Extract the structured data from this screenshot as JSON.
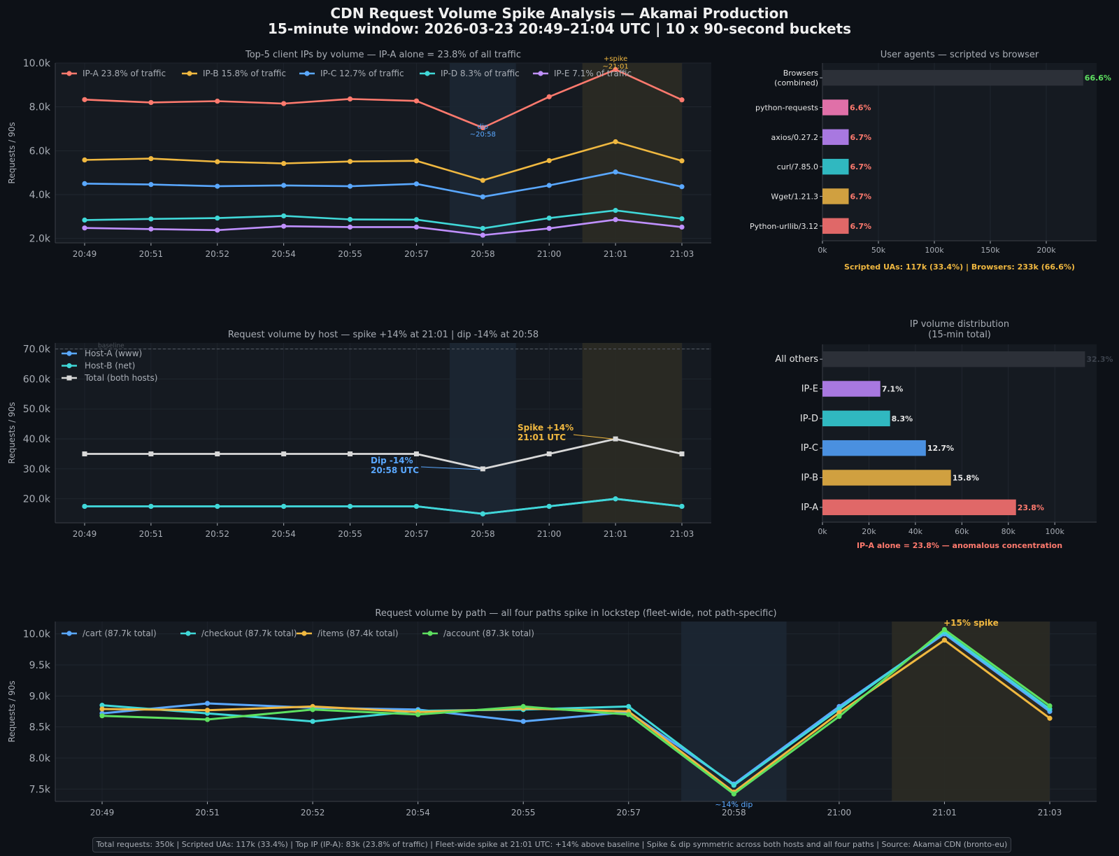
{
  "header": {
    "title_line1": "CDN Request Volume Spike Analysis  —  Akamai Production",
    "title_line2": "15-minute window:  2026-03-23  20:49–21:04 UTC  |  10 x 90-second buckets"
  },
  "colors": {
    "background": "#0d1117",
    "panel": "#151a21",
    "grid": "#242a33",
    "axis_text": "#a8adb5",
    "dip_band": "#1b2633",
    "spike_band": "#2a2a24",
    "orange": "#f0b840",
    "blue": "#5aa8ff",
    "red": "#ff7a6e",
    "green": "#5ee060"
  },
  "time_labels": [
    "20:49",
    "20:51",
    "20:52",
    "20:54",
    "20:55",
    "20:57",
    "20:58",
    "21:00",
    "21:01",
    "21:03"
  ],
  "chart_data": [
    {
      "id": "top_ips",
      "type": "line",
      "title": "Top-5 client IPs by volume  —  IP-A alone = 23.8% of all traffic",
      "ylabel": "Requests / 90s",
      "ylim": [
        1800,
        10000
      ],
      "yticks": [
        2000,
        4000,
        6000,
        8000,
        10000
      ],
      "ytick_labels": [
        "2.0k",
        "4.0k",
        "6.0k",
        "8.0k",
        "10.0k"
      ],
      "series": [
        {
          "name": "IP-A  23.8% of traffic",
          "color": "#ff7a6e",
          "values": [
            8330,
            8200,
            8260,
            8150,
            8360,
            8270,
            7050,
            8460,
            9700,
            8320
          ]
        },
        {
          "name": "IP-B  15.8% of traffic",
          "color": "#f0b840",
          "values": [
            5580,
            5640,
            5500,
            5420,
            5510,
            5540,
            4650,
            5550,
            6410,
            5540
          ]
        },
        {
          "name": "IP-C  12.7% of traffic",
          "color": "#5aa8ff",
          "values": [
            4500,
            4460,
            4380,
            4420,
            4380,
            4490,
            3900,
            4420,
            5030,
            4360
          ]
        },
        {
          "name": "IP-D  8.3% of traffic",
          "color": "#40d8d8",
          "values": [
            2840,
            2890,
            2930,
            3030,
            2870,
            2860,
            2460,
            2930,
            3280,
            2900
          ]
        },
        {
          "name": "IP-E  7.1% of traffic",
          "color": "#c090ff",
          "values": [
            2480,
            2430,
            2380,
            2560,
            2520,
            2520,
            2150,
            2460,
            2860,
            2520
          ]
        }
      ],
      "annotations": {
        "spike": "+spike",
        "spike_time": "~21:01",
        "dip": "dip",
        "dip_time": "~20:58"
      }
    },
    {
      "id": "user_agents",
      "type": "bar",
      "orientation": "horizontal",
      "title": "User agents — scripted vs browser",
      "categories": [
        "Browsers (combined)",
        "python-requests",
        "axios/0.27.2",
        "curl/7.85.0",
        "Wget/1.21.3",
        "Python-urllib/3.12"
      ],
      "category_lines": [
        [
          "Browsers",
          "(combined)"
        ],
        [
          "python-requests"
        ],
        [
          "axios/0.27.2"
        ],
        [
          "curl/7.85.0"
        ],
        [
          "Wget/1.21.3"
        ],
        [
          "Python-urllib/3.12"
        ]
      ],
      "values": [
        233000,
        23100,
        23450,
        23450,
        23450,
        23450
      ],
      "value_labels": [
        "66.6%",
        "6.6%",
        "6.7%",
        "6.7%",
        "6.7%",
        "6.7%"
      ],
      "colors": [
        "#2c3038",
        "#e070a8",
        "#a878e0",
        "#30b8c0",
        "#d0a040",
        "#e06868"
      ],
      "label_colors": [
        "#5ee060",
        "#ff7a6e",
        "#ff7a6e",
        "#ff7a6e",
        "#ff7a6e",
        "#ff7a6e"
      ],
      "xlim": [
        0,
        245000
      ],
      "xticks": [
        0,
        50000,
        100000,
        150000,
        200000
      ],
      "xtick_labels": [
        "0k",
        "50k",
        "100k",
        "150k",
        "200k"
      ],
      "caption": "Scripted UAs: 117k  (33.4%)  |  Browsers: 233k  (66.6%)"
    },
    {
      "id": "by_host",
      "type": "line",
      "title": "Request volume by host  —  spike +14% at 21:01 | dip -14% at 20:58",
      "ylabel": "Requests / 90s",
      "ylim": [
        12000,
        72000
      ],
      "yticks": [
        20000,
        30000,
        40000,
        50000,
        60000,
        70000
      ],
      "ytick_labels": [
        "20.0k",
        "30.0k",
        "40.0k",
        "50.0k",
        "60.0k",
        "70.0k"
      ],
      "baseline_value": 70000,
      "baseline_label": "baseline",
      "series": [
        {
          "name": "Host-A (www)",
          "color": "#5aa8ff",
          "values": [
            17500,
            17500,
            17500,
            17500,
            17500,
            17500,
            15000,
            17500,
            20000,
            17500
          ]
        },
        {
          "name": "Host-B (net)",
          "color": "#40d8d8",
          "values": [
            17500,
            17500,
            17500,
            17500,
            17500,
            17500,
            15000,
            17500,
            20000,
            17500
          ]
        },
        {
          "name": "Total (both hosts)",
          "color": "#d8d8d8",
          "values": [
            35000,
            35000,
            35000,
            35000,
            35000,
            35000,
            30000,
            35000,
            40000,
            35000
          ]
        }
      ],
      "annotations": {
        "spike_line1": "Spike +14%",
        "spike_line2": "21:01 UTC",
        "dip_line1": "Dip -14%",
        "dip_line2": "20:58 UTC"
      }
    },
    {
      "id": "ip_distribution",
      "type": "bar",
      "orientation": "horizontal",
      "title_line1": "IP volume distribution",
      "title_line2": "(15-min total)",
      "categories": [
        "All others",
        "IP-E",
        "IP-D",
        "IP-C",
        "IP-B",
        "IP-A"
      ],
      "values": [
        113000,
        24900,
        29100,
        44500,
        55300,
        83300
      ],
      "value_labels": [
        "32.3%",
        "7.1%",
        "8.3%",
        "12.7%",
        "15.8%",
        "23.8%"
      ],
      "colors": [
        "#2c3038",
        "#a878e0",
        "#30b8c0",
        "#4a90e0",
        "#d0a040",
        "#e06868"
      ],
      "label_colors": [
        "#3c424c",
        "#e6e6e6",
        "#e6e6e6",
        "#e6e6e6",
        "#e6e6e6",
        "#ff7a6e"
      ],
      "xlim": [
        0,
        118000
      ],
      "xticks": [
        0,
        20000,
        40000,
        60000,
        80000,
        100000
      ],
      "xtick_labels": [
        "0k",
        "20k",
        "40k",
        "60k",
        "80k",
        "100k"
      ],
      "caption": "IP-A alone = 23.8% — anomalous concentration"
    },
    {
      "id": "by_path",
      "type": "line",
      "title": "Request volume by path  —  all four paths spike in lockstep (fleet-wide, not path-specific)",
      "ylabel": "Requests / 90s",
      "ylim": [
        7300,
        10200
      ],
      "yticks": [
        7500,
        8000,
        8500,
        9000,
        9500,
        10000
      ],
      "ytick_labels": [
        "7.5k",
        "8.0k",
        "8.5k",
        "9.0k",
        "9.5k",
        "10.0k"
      ],
      "series": [
        {
          "name": "/cart  (87.7k total)",
          "color": "#5aa8ff",
          "values": [
            8720,
            8880,
            8810,
            8780,
            8590,
            8740,
            7580,
            8830,
            10000,
            8750
          ]
        },
        {
          "name": "/checkout  (87.7k total)",
          "color": "#40d8d8",
          "values": [
            8850,
            8720,
            8590,
            8760,
            8780,
            8830,
            7560,
            8790,
            10030,
            8790
          ]
        },
        {
          "name": "/items  (87.4k total)",
          "color": "#f0b840",
          "values": [
            8790,
            8770,
            8830,
            8740,
            8800,
            8750,
            7450,
            8730,
            9900,
            8640
          ]
        },
        {
          "name": "/account  (87.3k total)",
          "color": "#5ee060",
          "values": [
            8680,
            8620,
            8780,
            8700,
            8830,
            8700,
            7420,
            8670,
            10070,
            8840
          ]
        }
      ],
      "annotations": {
        "spike": "+15% spike",
        "dip": "~14% dip"
      }
    }
  ],
  "footer": {
    "text": "Total requests: 350k  |  Scripted UAs: 117k (33.4%)  |  Top IP (IP-A): 83k (23.8% of traffic)  |  Fleet-wide spike at 21:01 UTC: +14% above baseline  |  Spike & dip symmetric across both hosts and all four paths  |  Source: Akamai CDN (bronto-eu)"
  }
}
